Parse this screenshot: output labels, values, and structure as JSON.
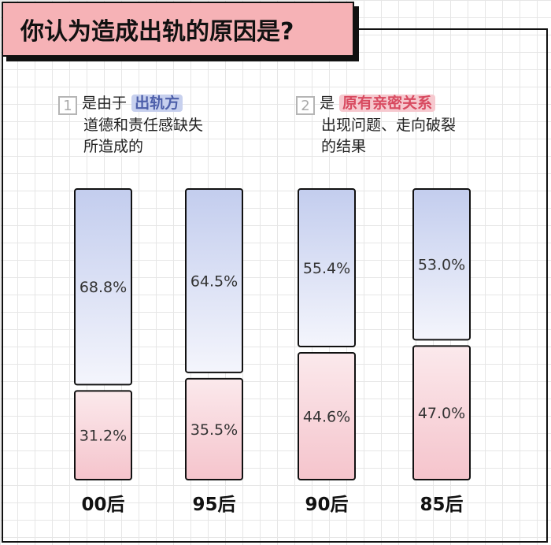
{
  "title": "你认为造成出轨的原因是?",
  "legend": [
    {
      "num": "1",
      "prefix": "是由于",
      "highlight": "出轨方",
      "line2": "道德和责任感缺失",
      "line3": "所造成的",
      "color": "#5a6cb0"
    },
    {
      "num": "2",
      "prefix": "是",
      "highlight": "原有亲密关系",
      "line2": "出现问题、走向破裂",
      "line3": "的结果",
      "color": "#d84a60"
    }
  ],
  "chart_data": {
    "type": "bar",
    "stacked": "100%",
    "categories": [
      "00后",
      "95后",
      "90后",
      "85后"
    ],
    "series": [
      {
        "values": [
          68.8,
          64.5,
          55.4,
          53.0
        ],
        "labels": [
          "68.8%",
          "64.5%",
          "55.4%",
          "53.0%"
        ],
        "color": "#c3cdee"
      },
      {
        "values": [
          31.2,
          35.5,
          44.6,
          47.0
        ],
        "labels": [
          "31.2%",
          "35.5%",
          "44.6%",
          "47.0%"
        ],
        "color": "#f5c4cc"
      }
    ],
    "ylim": [
      0,
      100
    ],
    "grid": true
  }
}
